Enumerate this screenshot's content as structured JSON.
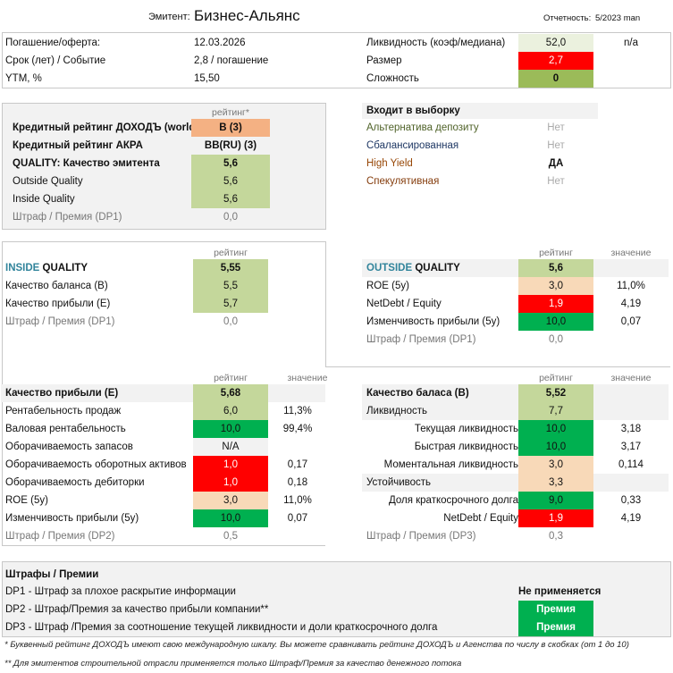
{
  "header": {
    "issuer_label": "Эмитент:",
    "issuer_name": "Бизнес-Альянс",
    "report_label": "Отчетность:",
    "report_value": "5/2023 man"
  },
  "info": {
    "left": [
      {
        "label": "Погашение/оферта:",
        "value": "12.03.2026"
      },
      {
        "label": "Срок (лет) / Событие",
        "value": "2,8 / погашение"
      },
      {
        "label": "YTM, %",
        "value": "15,50"
      }
    ],
    "right": [
      {
        "label": "Ликвидность (коэф/медиана)",
        "value": "52,0",
        "extra": "n/a",
        "color": "#ebf1de",
        "text_color": "#111"
      },
      {
        "label": "Размер",
        "value": "2,7",
        "extra": "",
        "color": "#ff0000",
        "text_color": "#fff"
      },
      {
        "label": "Сложность",
        "value": "0",
        "extra": "",
        "color": "#9bbb59",
        "text_color": "#111"
      }
    ]
  },
  "credit": {
    "rating_header": "рейтинг*",
    "rows": [
      {
        "label": "Кредитный рейтинг ДОХОДЪ (world):",
        "rating": "B (3)",
        "color": "#f4b183",
        "bold": true
      },
      {
        "label": "Кредитный рейтинг АКРА",
        "rating": "BB(RU) (3)",
        "color": "",
        "bold": true
      },
      {
        "label": "QUALITY: Качество эмитента",
        "rating": "5,6",
        "color": "#c4d79b",
        "bold": true
      },
      {
        "label": "Outside Quality",
        "rating": "5,6",
        "color": "#c4d79b"
      },
      {
        "label": "Inside Quality",
        "rating": "5,6",
        "color": "#c4d79b"
      },
      {
        "label": "Штраф / Премия (DP1)",
        "rating": "0,0",
        "color": "",
        "grey": true
      }
    ]
  },
  "selection": {
    "title": "Входит в выборку",
    "rows": [
      {
        "label": "Альтернатива депозиту",
        "value": "Нет",
        "label_color": "#4f6228",
        "value_color": "#aaa"
      },
      {
        "label": "Сбалансированная",
        "value": "Нет",
        "label_color": "#1f3864",
        "value_color": "#aaa"
      },
      {
        "label": "High Yield",
        "value": "ДА",
        "label_color": "#974706",
        "value_color": "#111"
      },
      {
        "label": "Спекулятивная",
        "value": "Нет",
        "label_color": "#843c0c",
        "value_color": "#aaa"
      }
    ]
  },
  "inside": {
    "rating_header": "рейтинг",
    "title_a": "INSIDE",
    "title_b": " QUALITY",
    "title_rating": "5,55",
    "title_color": "#c4d79b",
    "rows": [
      {
        "label": "Качество баланса (B)",
        "rating": "5,5",
        "color": "#c4d79b"
      },
      {
        "label": "Качество прибыли (E)",
        "rating": "5,7",
        "color": "#c4d79b"
      },
      {
        "label": "Штраф / Премия (DP1)",
        "rating": "0,0",
        "color": "",
        "grey": true
      }
    ]
  },
  "outside": {
    "rating_header": "рейтинг",
    "value_header": "значение",
    "title_a": "OUTSIDE",
    "title_b": " QUALITY",
    "title_rating": "5,6",
    "title_color": "#c4d79b",
    "rows": [
      {
        "label": "ROE (5y)",
        "rating": "3,0",
        "value": "11,0%",
        "color": "#f8d9b8"
      },
      {
        "label": "NetDebt / Equity",
        "rating": "1,9",
        "value": "4,19",
        "color": "#ff0000",
        "white": true
      },
      {
        "label": "Изменчивость прибыли (5y)",
        "rating": "10,0",
        "value": "0,07",
        "color": "#00b050"
      },
      {
        "label": "Штраф / Премия (DP1)",
        "rating": "0,0",
        "value": "",
        "color": "",
        "grey": true
      }
    ]
  },
  "earnings": {
    "rating_header": "рейтинг",
    "value_header": "значение",
    "title": "Качество прибыли (E)",
    "title_rating": "5,68",
    "title_color": "#c4d79b",
    "rows": [
      {
        "label": "Рентабельность продаж",
        "rating": "6,0",
        "value": "11,3%",
        "color": "#c4d79b"
      },
      {
        "label": "Валовая рентабельность",
        "rating": "10,0",
        "value": "99,4%",
        "color": "#00b050"
      },
      {
        "label": "Оборачиваемость запасов",
        "rating": "N/A",
        "value": "",
        "color": "#f2f2f2"
      },
      {
        "label": "Оборачиваемость оборотных активов",
        "rating": "1,0",
        "value": "0,17",
        "color": "#ff0000",
        "white": true
      },
      {
        "label": "Оборачиваемость дебиторки",
        "rating": "1,0",
        "value": "0,18",
        "color": "#ff0000",
        "white": true
      },
      {
        "label": "ROE (5y)",
        "rating": "3,0",
        "value": "11,0%",
        "color": "#f8d9b8"
      },
      {
        "label": "Изменчивость прибыли (5y)",
        "rating": "10,0",
        "value": "0,07",
        "color": "#00b050"
      },
      {
        "label": "Штраф / Премия (DP2)",
        "rating": "0,5",
        "value": "",
        "color": "",
        "grey": true
      }
    ]
  },
  "balance": {
    "rating_header": "рейтинг",
    "value_header": "значение",
    "title": "Качество баласа (B)",
    "title_rating": "5,52",
    "title_color": "#c4d79b",
    "rows": [
      {
        "label": "Ликвидность",
        "rating": "7,7",
        "value": "",
        "color": "#c4d79b",
        "greybg": true
      },
      {
        "label": "Текущая ликвидность",
        "rating": "10,0",
        "value": "3,18",
        "color": "#00b050",
        "right": true
      },
      {
        "label": "Быстрая ликвидность",
        "rating": "10,0",
        "value": "3,17",
        "color": "#00b050",
        "right": true
      },
      {
        "label": "Моментальная ликвидность",
        "rating": "3,0",
        "value": "0,114",
        "color": "#f8d9b8",
        "right": true
      },
      {
        "label": "Устойчивость",
        "rating": "3,3",
        "value": "",
        "color": "#f8d9b8",
        "greybg": true
      },
      {
        "label": "Доля краткосрочного долга",
        "rating": "9,0",
        "value": "0,33",
        "color": "#00b050",
        "right": true
      },
      {
        "label": "NetDebt / Equity",
        "rating": "1,9",
        "value": "4,19",
        "color": "#ff0000",
        "white": true,
        "right": true
      },
      {
        "label": "Штраф / Премия (DP3)",
        "rating": "0,3",
        "value": "",
        "color": "",
        "grey": true
      }
    ]
  },
  "penalties": {
    "title": "Штрафы / Премии",
    "rows": [
      {
        "label": "DP1 - Штраф за плохое раскрытие информации",
        "status": "Не применяется",
        "color": ""
      },
      {
        "label": "DP2 - Штраф/Премия за качество прибыли компании**",
        "status": "Премия",
        "color": "#00b050"
      },
      {
        "label": "DP3 - Штраф /Премия за соотношение текущей ликвидности и доли краткосрочного долга",
        "status": "Премия",
        "color": "#00b050"
      }
    ]
  },
  "footnotes": [
    "* Буквенный рейтинг ДОХОДЪ имеют свою международную шкалу. Вы можете сравнивать рейтинг ДОХОДЪ и Агенства по числу в скобках (от 1 до 10)",
    "** Для эмитентов строительной отрасли применяется только Штраф/Премия за качество денежного потока"
  ]
}
